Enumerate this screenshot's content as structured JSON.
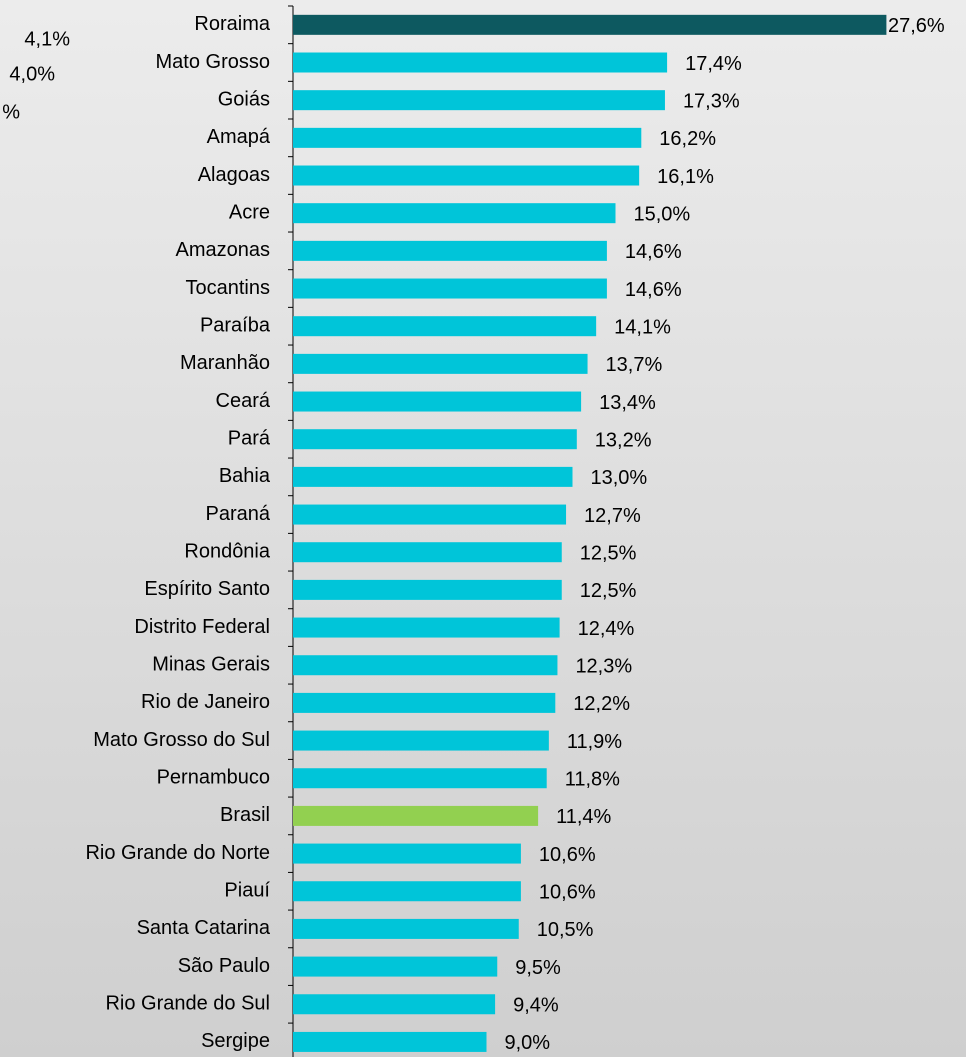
{
  "chart_data": {
    "type": "hbar",
    "annotations": [
      "4,1%",
      "4,0%",
      "%"
    ],
    "categories": [
      "Roraima",
      "Mato Grosso",
      "Goiás",
      "Amapá",
      "Alagoas",
      "Acre",
      "Amazonas",
      "Tocantins",
      "Paraíba",
      "Maranhão",
      "Ceará",
      "Pará",
      "Bahia",
      "Paraná",
      "Rondônia",
      "Espírito Santo",
      "Distrito Federal",
      "Minas Gerais",
      "Rio de Janeiro",
      "Mato Grosso do Sul",
      "Pernambuco",
      "Brasil",
      "Rio Grande do Norte",
      "Piauí",
      "Santa Catarina",
      "São Paulo",
      "Rio Grande do Sul",
      "Sergipe"
    ],
    "values": [
      27.6,
      17.4,
      17.3,
      16.2,
      16.1,
      15.0,
      14.6,
      14.6,
      14.1,
      13.7,
      13.4,
      13.2,
      13.0,
      12.7,
      12.5,
      12.5,
      12.4,
      12.3,
      12.2,
      11.9,
      11.8,
      11.4,
      10.6,
      10.6,
      10.5,
      9.5,
      9.4,
      9.0
    ],
    "value_labels": [
      "27,6%",
      "17,4%",
      "17,3%",
      "16,2%",
      "16,1%",
      "15,0%",
      "14,6%",
      "14,6%",
      "14,1%",
      "13,7%",
      "13,4%",
      "13,2%",
      "13,0%",
      "12,7%",
      "12,5%",
      "12,5%",
      "12,4%",
      "12,3%",
      "12,2%",
      "11,9%",
      "11,8%",
      "11,4%",
      "10,6%",
      "10,6%",
      "10,5%",
      "9,5%",
      "9,4%",
      "9,0%"
    ],
    "colors": [
      "#0d5960",
      "#00c5d9",
      "#00c5d9",
      "#00c5d9",
      "#00c5d9",
      "#00c5d9",
      "#00c5d9",
      "#00c5d9",
      "#00c5d9",
      "#00c5d9",
      "#00c5d9",
      "#00c5d9",
      "#00c5d9",
      "#00c5d9",
      "#00c5d9",
      "#00c5d9",
      "#00c5d9",
      "#00c5d9",
      "#00c5d9",
      "#00c5d9",
      "#00c5d9",
      "#92d050",
      "#00c5d9",
      "#00c5d9",
      "#00c5d9",
      "#00c5d9",
      "#00c5d9",
      "#00c5d9"
    ],
    "xlim": [
      0,
      30
    ]
  }
}
